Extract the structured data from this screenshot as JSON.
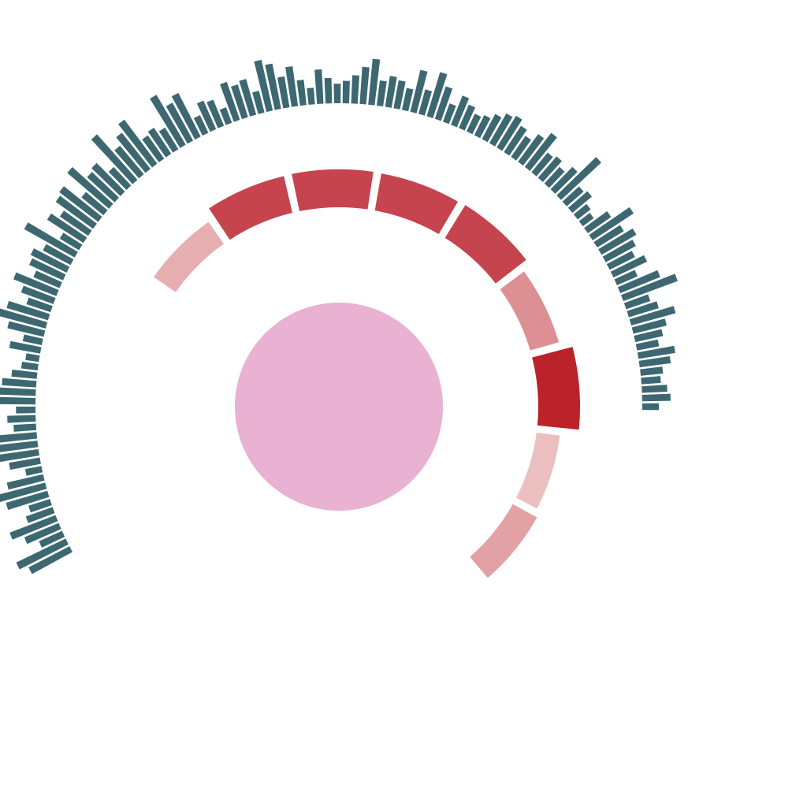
{
  "chart_data": {
    "type": "radial",
    "title": "",
    "center_circle_color": "#e9b1d2",
    "ring_separator_color": "#ffffff",
    "ring_segments": [
      {
        "value": 0.52,
        "color": "#e6aeb0"
      },
      {
        "value": 0.87,
        "color": "#c5444d"
      },
      {
        "value": 0.88,
        "color": "#c5444d"
      },
      {
        "value": 0.87,
        "color": "#c5444d"
      },
      {
        "value": 0.9,
        "color": "#c5444d"
      },
      {
        "value": 0.62,
        "color": "#dc9093"
      },
      {
        "value": 1.0,
        "color": "#bb2229"
      },
      {
        "value": 0.42,
        "color": "#ebbfbf"
      },
      {
        "value": 0.55,
        "color": "#e1a1a5"
      }
    ],
    "outer_bars": {
      "color": "#3d6871",
      "values": [
        0.7,
        0.85,
        0.35,
        0.55,
        0.75,
        0.4,
        0.3,
        0.65,
        0.9,
        0.55,
        0.2,
        0.45,
        0.6,
        0.8,
        0.7,
        0.3,
        0.4,
        0.25,
        0.75,
        0.6,
        0.5,
        0.35,
        0.2,
        0.15,
        0.45,
        0.25,
        0.55,
        0.8,
        0.65,
        0.35,
        0.5,
        0.7,
        0.4,
        0.55,
        0.6,
        0.45,
        0.9,
        0.3,
        0.65,
        0.5,
        0.7,
        0.75,
        0.4,
        0.85,
        0.55,
        0.6,
        0.35,
        0.95,
        0.55,
        0.7,
        0.85,
        0.4,
        0.45,
        0.35,
        0.9,
        0.65,
        0.75,
        0.25,
        0.45,
        0.4,
        0.2,
        0.6,
        0.5,
        0.55,
        0.3,
        0.8,
        0.7,
        0.45,
        0.6,
        0.35,
        0.2,
        0.5,
        0.35,
        0.25,
        0.3,
        0.4,
        0.55,
        0.7,
        0.35,
        0.45,
        0.4,
        0.3,
        0.65,
        0.35,
        0.7,
        0.5,
        0.25,
        0.45,
        0.35,
        0.25,
        0.3,
        0.4,
        0.5,
        0.55,
        0.45,
        0.35,
        0.5,
        0.65,
        0.35,
        0.4,
        0.3,
        0.45,
        0.85,
        0.3,
        0.35,
        0.2,
        0.15,
        0.4,
        0.75,
        0.45,
        0.6,
        0.5,
        0.4,
        0.55,
        0.3,
        0.65,
        0.9,
        0.35,
        0.45,
        0.7,
        0.5,
        0.4,
        0.3,
        0.55,
        0.45,
        0.3,
        0.25,
        0.35,
        0.4,
        0.2
      ]
    }
  }
}
